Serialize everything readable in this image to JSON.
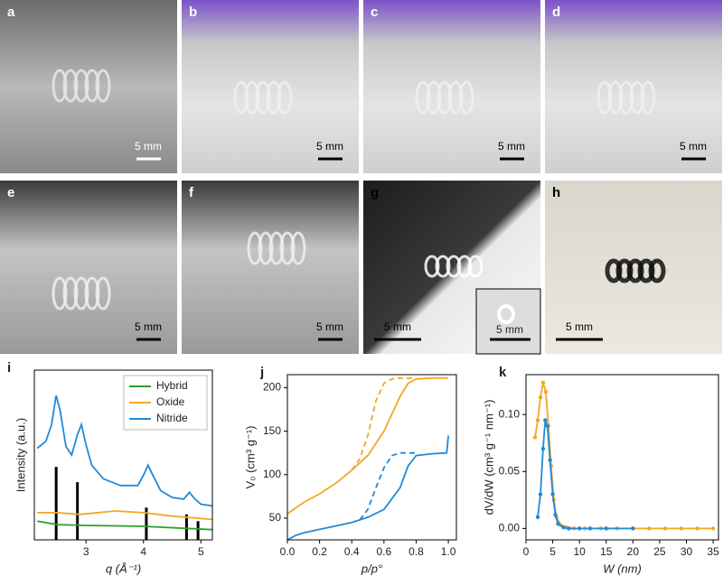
{
  "photos": [
    {
      "label": "a",
      "scale": "5 mm"
    },
    {
      "label": "b",
      "scale": "5 mm"
    },
    {
      "label": "c",
      "scale": "5 mm"
    },
    {
      "label": "d",
      "scale": "5 mm"
    },
    {
      "label": "e",
      "scale": "5 mm"
    },
    {
      "label": "f",
      "scale": "5 mm"
    },
    {
      "label": "g",
      "scale": "5 mm",
      "inset_scale": "5 mm"
    },
    {
      "label": "h",
      "scale": "5 mm"
    }
  ],
  "chart_data": [
    {
      "type": "line",
      "panel": "i",
      "xlabel": "q (Å⁻¹)",
      "ylabel": "Intensity (a.u.)",
      "xlim": [
        2.1,
        5.2
      ],
      "ylim": [
        0,
        10
      ],
      "xticks": [
        3,
        4,
        5
      ],
      "legend": "upper right",
      "series": [
        {
          "name": "Hybrid",
          "color": "#2ca02c",
          "x": [
            2.15,
            2.5,
            3.0,
            4.0,
            5.2
          ],
          "values": [
            1.1,
            0.9,
            0.85,
            0.8,
            0.6
          ]
        },
        {
          "name": "Oxide",
          "color": "#f5a623",
          "x": [
            2.15,
            2.5,
            2.9,
            3.5,
            4.0,
            4.5,
            5.2
          ],
          "values": [
            1.6,
            1.6,
            1.5,
            1.7,
            1.6,
            1.4,
            1.2
          ]
        },
        {
          "name": "Nitride",
          "color": "#1f8ad8",
          "x": [
            2.15,
            2.3,
            2.4,
            2.48,
            2.55,
            2.65,
            2.75,
            2.85,
            2.92,
            3.0,
            3.1,
            3.3,
            3.6,
            3.9,
            4.0,
            4.08,
            4.15,
            4.3,
            4.5,
            4.7,
            4.8,
            4.9,
            5.0,
            5.2
          ],
          "values": [
            5.4,
            5.8,
            6.8,
            8.5,
            7.6,
            5.5,
            5.0,
            6.2,
            6.8,
            5.6,
            4.4,
            3.6,
            3.2,
            3.2,
            3.8,
            4.4,
            3.9,
            2.9,
            2.5,
            2.4,
            2.8,
            2.4,
            2.1,
            2.0
          ]
        }
      ],
      "sticks": {
        "color": "#000000",
        "x": [
          2.48,
          2.85,
          4.05,
          4.75,
          4.95
        ],
        "values": [
          4.3,
          3.4,
          1.9,
          1.5,
          1.1
        ]
      }
    },
    {
      "type": "line",
      "panel": "j",
      "xlabel": "p/p°",
      "ylabel": "V₀ (cm³ g⁻¹)",
      "xlim": [
        0,
        1.05
      ],
      "ylim": [
        25,
        215
      ],
      "xticks": [
        {
          "value": 0,
          "label": "0.0"
        },
        {
          "value": 0.2,
          "label": "0.2"
        },
        {
          "value": 0.4,
          "label": "0.4"
        },
        {
          "value": 0.6,
          "label": "0.6"
        },
        {
          "value": 0.8,
          "label": "0.8"
        },
        {
          "value": 1,
          "label": "1.0"
        }
      ],
      "yticks": [
        50,
        100,
        150,
        200
      ],
      "series": [
        {
          "color": "#f5a623",
          "x": [
            0,
            0.1,
            0.2,
            0.3,
            0.4,
            0.5,
            0.6,
            0.7,
            0.75,
            0.8,
            0.9,
            1.0
          ],
          "values": [
            55,
            68,
            78,
            90,
            105,
            122,
            150,
            190,
            205,
            210,
            211,
            211
          ]
        },
        {
          "color": "#f5a623",
          "dash": true,
          "x": [
            0.4,
            0.45,
            0.5,
            0.55,
            0.6,
            0.65,
            0.7,
            0.8
          ],
          "values": [
            105,
            118,
            145,
            185,
            205,
            210,
            211,
            211
          ]
        },
        {
          "color": "#1f8ad8",
          "x": [
            0,
            0.05,
            0.1,
            0.2,
            0.3,
            0.4,
            0.5,
            0.6,
            0.7,
            0.75,
            0.8,
            0.9,
            0.99,
            1.0
          ],
          "values": [
            25,
            30,
            33,
            37,
            41,
            45,
            51,
            60,
            85,
            110,
            122,
            124,
            125,
            145
          ]
        },
        {
          "color": "#1f8ad8",
          "dash": true,
          "x": [
            0.45,
            0.5,
            0.55,
            0.6,
            0.65,
            0.7,
            0.8
          ],
          "values": [
            48,
            60,
            85,
            108,
            122,
            125,
            125
          ]
        }
      ]
    },
    {
      "type": "line",
      "panel": "k",
      "xlabel": "W (nm)",
      "ylabel": "dV/dW (cm³ g⁻¹ nm⁻¹)",
      "xlim": [
        0,
        36
      ],
      "ylim": [
        -0.01,
        0.135
      ],
      "xticks": [
        0,
        5,
        10,
        15,
        20,
        25,
        30,
        35
      ],
      "yticks": [
        {
          "value": 0,
          "label": "0.00"
        },
        {
          "value": 0.05,
          "label": "0.05"
        },
        {
          "value": 0.1,
          "label": "0.10"
        }
      ],
      "markers": true,
      "series": [
        {
          "color": "#f5a623",
          "x": [
            1.7,
            2.2,
            2.7,
            3.2,
            3.7,
            4.2,
            4.7,
            5.2,
            5.7,
            6.5,
            7.5,
            9,
            11,
            14,
            17,
            20,
            23,
            26,
            29,
            32,
            35
          ],
          "values": [
            0.08,
            0.095,
            0.115,
            0.128,
            0.12,
            0.09,
            0.055,
            0.025,
            0.01,
            0.003,
            0.001,
            0,
            0,
            0,
            0,
            0,
            0,
            0,
            0,
            0,
            0
          ]
        },
        {
          "color": "#1f8ad8",
          "x": [
            2.2,
            2.7,
            3.2,
            3.6,
            4.0,
            4.5,
            5,
            5.5,
            6,
            7,
            8,
            10,
            12,
            15,
            20
          ],
          "values": [
            0.01,
            0.03,
            0.07,
            0.095,
            0.09,
            0.06,
            0.03,
            0.012,
            0.004,
            0.001,
            0,
            0,
            0,
            0,
            0
          ]
        }
      ]
    }
  ]
}
